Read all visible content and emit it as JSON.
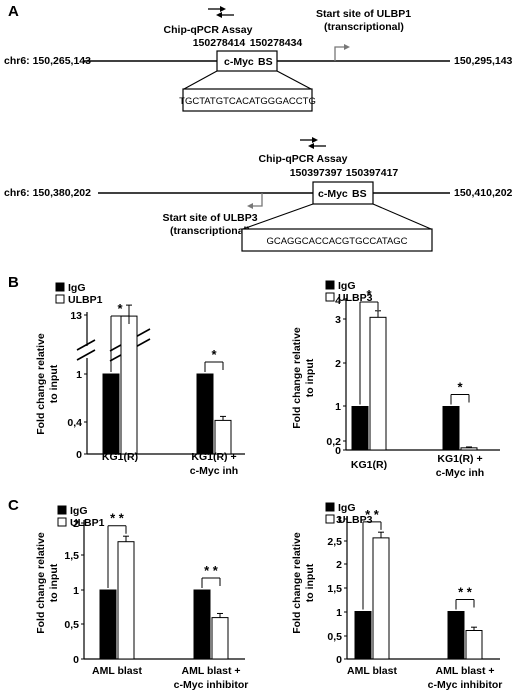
{
  "panelA": {
    "label": "A",
    "top": {
      "assay": "Chip-qPCR Assay",
      "pos1": "150278414",
      "pos2": "150278434",
      "start_site": "Start site of ULBP1",
      "start_site2": "(transcriptional)",
      "chr_left": "chr6: 150,265,143",
      "chr_right": "150,295,143",
      "bs_c": "c-Myc",
      "bs_b": "BS",
      "sequence": "TGCTATGTCACATGGGACCTG"
    },
    "bottom": {
      "assay": "Chip-qPCR Assay",
      "pos1": "150397397",
      "pos2": "150397417",
      "start_site": "Start site of ULBP3",
      "start_site2": "(transcriptional)",
      "chr_left": "chr6: 150,380,202",
      "chr_right": "150,410,202",
      "bs_c": "c-Myc",
      "bs_b": "BS",
      "sequence": "GCAGGCACCACGTGCCATAGC"
    }
  },
  "panelB": {
    "label": "B"
  },
  "panelC": {
    "label": "C"
  },
  "chart_data": [
    {
      "id": "B-left",
      "type": "bar",
      "ylabel": "Fold change  relative to input",
      "categories": [
        "KG1(R)",
        "KG1(R) + c-Myc inh"
      ],
      "series": [
        {
          "name": "IgG",
          "values": [
            1,
            1
          ],
          "color": "#000000"
        },
        {
          "name": "ULBP1",
          "values": [
            12.9,
            0.42
          ],
          "errors": [
            0.4,
            0.05
          ],
          "color": "#ffffff"
        }
      ],
      "y_ticks": [
        "13",
        "1",
        "0,4",
        "0"
      ],
      "axis_break": true,
      "significance": [
        "*",
        "*"
      ],
      "legend": "top-left"
    },
    {
      "id": "B-right",
      "type": "bar",
      "ylabel": "Fold change  relative to input",
      "categories": [
        "KG1(R)",
        "KG1(R) + c-Myc inh"
      ],
      "series": [
        {
          "name": "IgG",
          "values": [
            1,
            1
          ],
          "color": "#000000"
        },
        {
          "name": "ULBP3",
          "values": [
            3.05,
            0.05
          ],
          "errors": [
            0.15,
            0.02
          ],
          "color": "#ffffff"
        }
      ],
      "y_ticks": [
        "4",
        "3",
        "2",
        "1",
        "0,2",
        "0"
      ],
      "ylim": [
        0,
        4
      ],
      "significance": [
        "*",
        "*"
      ],
      "legend": "top-left"
    },
    {
      "id": "C-left",
      "type": "bar",
      "ylabel": "Fold change  relative to input",
      "categories": [
        "AML blast",
        "AML blast + c-Myc inhibitor"
      ],
      "series": [
        {
          "name": "IgG",
          "values": [
            1,
            1
          ],
          "color": "#000000"
        },
        {
          "name": "ULBP1",
          "values": [
            1.7,
            0.6
          ],
          "errors": [
            0.08,
            0.06
          ],
          "color": "#ffffff"
        }
      ],
      "y_ticks": [
        "0",
        "0,5",
        "1",
        "1,5",
        "2"
      ],
      "ylim": [
        0,
        2
      ],
      "significance": [
        "* *",
        "* *"
      ],
      "legend": "top-left"
    },
    {
      "id": "C-right",
      "type": "bar",
      "ylabel": "Fold change  relative to input",
      "categories": [
        "AML blast",
        "AML blast + c-Myc inhibitor"
      ],
      "series": [
        {
          "name": "IgG",
          "values": [
            1,
            1
          ],
          "color": "#000000"
        },
        {
          "name": "ULBP3",
          "values": [
            2.55,
            0.6
          ],
          "errors": [
            0.12,
            0.07
          ],
          "color": "#ffffff"
        }
      ],
      "y_ticks": [
        "0",
        "0,5",
        "1",
        "1,5",
        "2",
        "2,5",
        "3"
      ],
      "ylim": [
        0,
        3
      ],
      "significance": [
        "* *",
        "* *"
      ],
      "legend": "top-left"
    }
  ]
}
